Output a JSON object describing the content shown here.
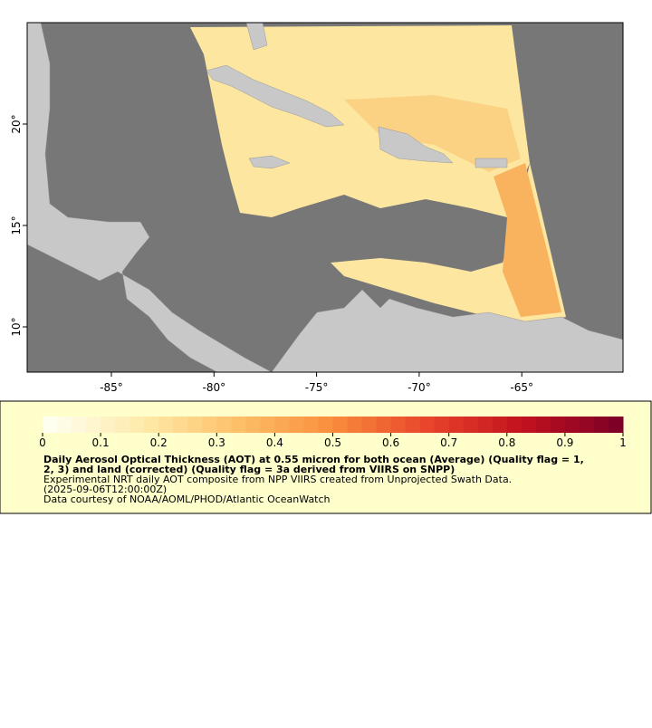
{
  "map": {
    "x_tick_labels": [
      "-85°",
      "-80°",
      "-75°",
      "-70°",
      "-65°"
    ],
    "y_tick_labels": [
      "20°",
      "15°",
      "10°"
    ]
  },
  "legend": {
    "ticks": [
      "0",
      "0.1",
      "0.2",
      "0.3",
      "0.4",
      "0.5",
      "0.6",
      "0.7",
      "0.8",
      "0.9",
      "1"
    ],
    "title_lines": [
      "Daily Aerosol Optical Thickness (AOT) at 0.55 micron for both ocean (Average) (Quality flag = 1,",
      "2, 3) and land (corrected) (Quality flag = 3a derived from VIIRS on SNPP)"
    ],
    "description_lines": [
      "Experimental NRT daily AOT composite from NPP VIIRS created from Unprojected Swath Data.",
      "(2025-09-06T12:00:00Z)",
      "Data courtesy of NOAA/AOML/PHOD/Atlantic OceanWatch"
    ]
  }
}
